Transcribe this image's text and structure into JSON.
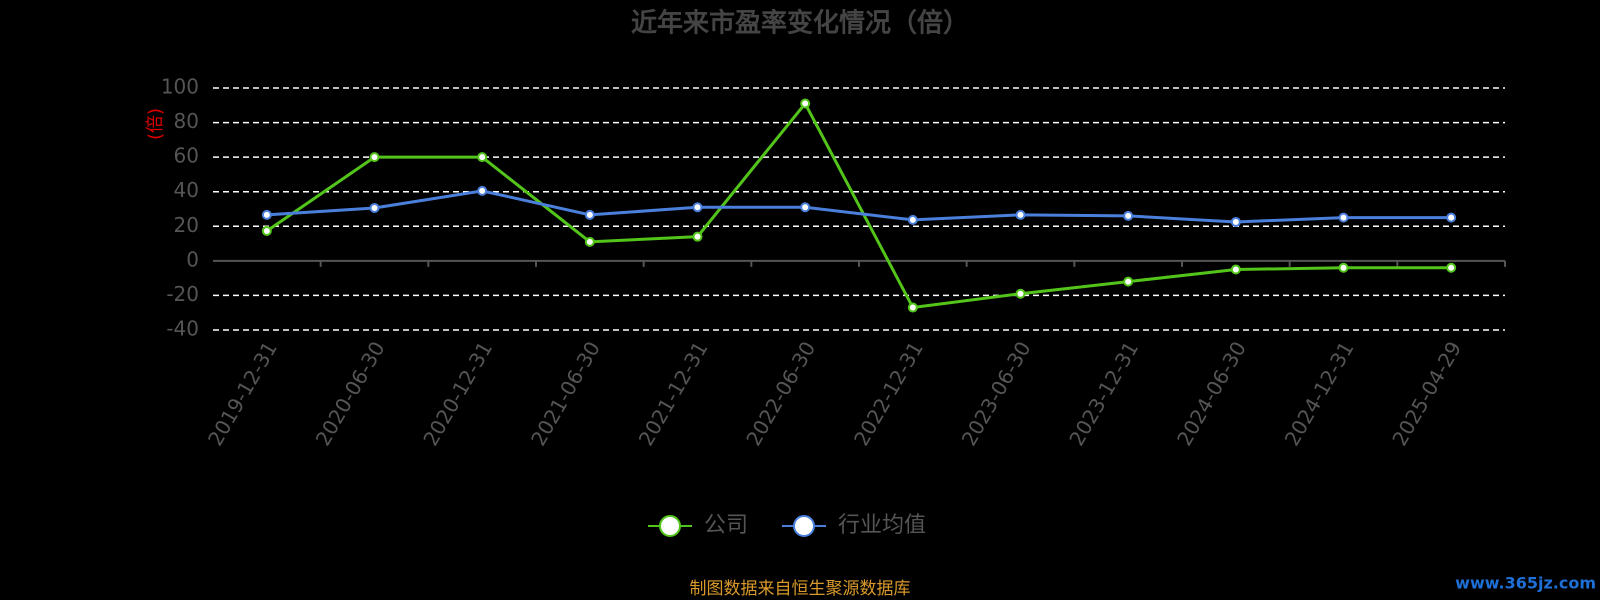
{
  "chart_data": {
    "type": "line",
    "title": "近年来市盈率变化情况（倍）",
    "y_label": "(倍)",
    "categories": [
      "2019-12-31",
      "2020-06-30",
      "2020-12-31",
      "2021-06-30",
      "2021-12-31",
      "2022-06-30",
      "2022-12-31",
      "2023-06-30",
      "2023-12-31",
      "2024-06-30",
      "2024-12-31",
      "2025-04-29"
    ],
    "series": [
      {
        "name": "公司",
        "color": "#52c41a",
        "values": [
          17.3,
          60,
          60,
          11,
          14,
          91,
          -27,
          -19,
          -12,
          -5,
          -4,
          -4
        ]
      },
      {
        "name": "行业均值",
        "color": "#4a7fdb",
        "values": [
          26.6,
          30.6,
          40.5,
          26.6,
          31,
          31,
          23.7,
          26.6,
          26,
          22.5,
          25,
          25
        ]
      }
    ],
    "ylim": [
      -40,
      100
    ],
    "yticks": [
      -40,
      -20,
      0,
      20,
      40,
      60,
      80,
      100
    ],
    "grid": true,
    "source": "制图数据来自恒生聚源数据库",
    "watermark": "www.365jz.com"
  }
}
